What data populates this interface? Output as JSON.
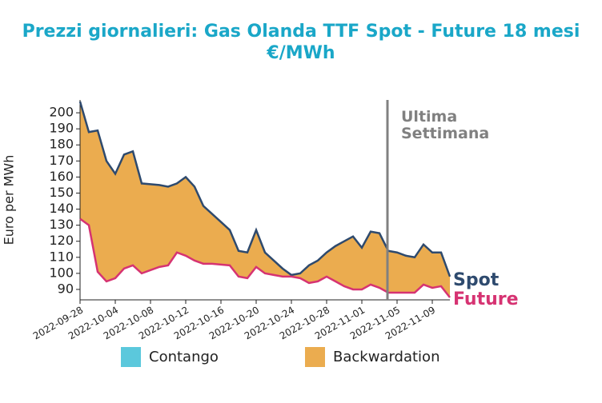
{
  "chart_data": {
    "type": "area-between",
    "title": "Prezzi giornalieri: Gas Olanda TTF Spot - Future 18 mesi",
    "subtitle": "€/MWh",
    "y_label": "Euro per MWh",
    "annotation": "Ultima\nSettimana",
    "annotation_index": 35,
    "categories": [
      "2022-09-28",
      null,
      null,
      null,
      "2022-10-04",
      null,
      null,
      null,
      "2022-10-08",
      null,
      null,
      null,
      "2022-10-12",
      null,
      null,
      null,
      "2022-10-16",
      null,
      null,
      null,
      "2022-10-20",
      null,
      null,
      null,
      "2022-10-24",
      null,
      null,
      null,
      "2022-10-28",
      null,
      null,
      null,
      "2022-11-01",
      null,
      null,
      null,
      "2022-11-05",
      null,
      null,
      null,
      "2022-11-09",
      null,
      null
    ],
    "series": [
      {
        "name": "Spot",
        "color": "#2e4a6e",
        "values": [
          207,
          188,
          189,
          170,
          162,
          174,
          176,
          156,
          155.5,
          155,
          154,
          156,
          160,
          154,
          142,
          137,
          132,
          127,
          114,
          113,
          127,
          113,
          108,
          103,
          99,
          100,
          105,
          108,
          113,
          117,
          120,
          123,
          116,
          126,
          125,
          114,
          113,
          111,
          110,
          118,
          113,
          113,
          98
        ]
      },
      {
        "name": "Future",
        "color": "#d63372",
        "values": [
          134,
          130,
          101,
          95,
          97,
          103,
          105,
          100,
          102,
          104,
          105,
          113,
          111,
          108,
          106,
          106,
          105.5,
          105,
          98,
          97,
          104,
          100,
          99,
          98,
          98,
          97,
          94,
          95,
          98,
          95,
          92,
          90,
          90,
          93,
          91,
          88,
          88,
          88,
          88,
          93,
          91,
          92,
          85
        ]
      }
    ],
    "legend": [
      {
        "name": "Contango",
        "color": "#5bc8dc"
      },
      {
        "name": "Backwardation",
        "color": "#ebac4f"
      }
    ],
    "ylim": [
      83.5,
      208
    ],
    "yticks": [
      90,
      100,
      110,
      120,
      130,
      140,
      150,
      160,
      170,
      180,
      190,
      200
    ]
  }
}
